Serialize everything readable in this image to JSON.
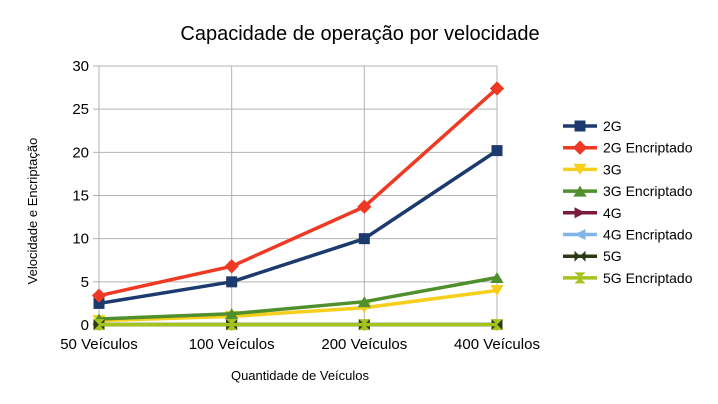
{
  "chart_data": {
    "type": "line",
    "title": "Capacidade de operação por velocidade",
    "xlabel": "Quantidade de Veículos",
    "ylabel": "Velocidade e Encriptação",
    "categories": [
      "50 Veículos",
      "100 Veículos",
      "200 Veículos",
      "400 Veículos"
    ],
    "ylim": [
      0,
      30
    ],
    "yticks": [
      0,
      5,
      10,
      15,
      20,
      25,
      30
    ],
    "grid": true,
    "legend_position": "right",
    "series": [
      {
        "name": "2G",
        "color": "#1d3a6e",
        "marker": "square",
        "values": [
          2.5,
          5.0,
          10.0,
          20.2
        ]
      },
      {
        "name": "2G Encriptado",
        "color": "#ee3a24",
        "marker": "diamond",
        "values": [
          3.4,
          6.8,
          13.7,
          27.4
        ]
      },
      {
        "name": "3G",
        "color": "#f6cf1c",
        "marker": "triangle-down",
        "values": [
          0.5,
          1.0,
          2.0,
          4.0
        ]
      },
      {
        "name": "3G Encriptado",
        "color": "#4f8f2c",
        "marker": "triangle-up",
        "values": [
          0.7,
          1.3,
          2.7,
          5.5
        ]
      },
      {
        "name": "4G",
        "color": "#7a1b3e",
        "marker": "arrow-right",
        "values": [
          0.05,
          0.05,
          0.05,
          0.05
        ]
      },
      {
        "name": "4G Encriptado",
        "color": "#7fb5e8",
        "marker": "arrow-left",
        "values": [
          0.05,
          0.05,
          0.05,
          0.05
        ]
      },
      {
        "name": "5G",
        "color": "#2b3a14",
        "marker": "x",
        "values": [
          0.05,
          0.05,
          0.05,
          0.05
        ]
      },
      {
        "name": "5G Encriptado",
        "color": "#a4c31c",
        "marker": "hourglass",
        "values": [
          0.05,
          0.05,
          0.05,
          0.05
        ]
      }
    ]
  }
}
